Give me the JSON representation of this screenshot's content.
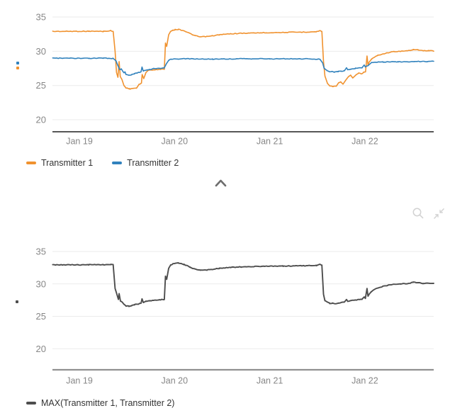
{
  "ui": {
    "colors": {
      "grid": "#ebebeb",
      "axis_top": "#3f3f3f",
      "axis_bottom": "#919191",
      "tick_label": "#878787",
      "legend_text": "#333333",
      "icon_gray": "#d2d2d2",
      "chevron_gray": "#6e6e6e"
    },
    "collapse_chevron": {
      "icon": "chevron-up-icon"
    },
    "toolbar_icons": [
      {
        "name": "zoom-magnifier"
      },
      {
        "name": "collapse-arrows"
      }
    ]
  },
  "chart_data": [
    {
      "type": "line",
      "title": "",
      "xlabel": "",
      "ylabel": "",
      "grid": "horizontal",
      "legend_position": "bottom-left",
      "y_ticks": [
        35,
        30,
        25,
        20
      ],
      "ylim": [
        18.3,
        35.8
      ],
      "x_ticks": [
        {
          "t": 0,
          "label": "Jan 19"
        },
        {
          "t": 1,
          "label": "Jan 20"
        },
        {
          "t": 2,
          "label": "Jan 21"
        },
        {
          "t": 3,
          "label": "Jan 22"
        }
      ],
      "x_range_days": [
        -0.283,
        3.723
      ],
      "series": [
        {
          "name": "Transmitter 1",
          "color": "#f0922f",
          "points": [
            [
              -0.28,
              32.9
            ],
            [
              0.1,
              32.92
            ],
            [
              0.25,
              32.9
            ],
            [
              0.33,
              33.0
            ],
            [
              0.355,
              32.9
            ],
            [
              0.375,
              30.0
            ],
            [
              0.39,
              26.9
            ],
            [
              0.405,
              26.2
            ],
            [
              0.418,
              28.5
            ],
            [
              0.43,
              26.3
            ],
            [
              0.447,
              25.9
            ],
            [
              0.468,
              25.0
            ],
            [
              0.49,
              24.65
            ],
            [
              0.53,
              24.5
            ],
            [
              0.57,
              24.6
            ],
            [
              0.6,
              24.6
            ],
            [
              0.628,
              25.2
            ],
            [
              0.652,
              25.35
            ],
            [
              0.66,
              26.6
            ],
            [
              0.676,
              26.0
            ],
            [
              0.7,
              26.9
            ],
            [
              0.722,
              27.2
            ],
            [
              0.78,
              27.3
            ],
            [
              0.85,
              27.35
            ],
            [
              0.893,
              27.4
            ],
            [
              0.905,
              31.2
            ],
            [
              0.917,
              30.7
            ],
            [
              0.938,
              32.4
            ],
            [
              0.958,
              32.9
            ],
            [
              0.983,
              33.1
            ],
            [
              1.005,
              33.15
            ],
            [
              1.04,
              33.2
            ],
            [
              1.1,
              33.0
            ],
            [
              1.16,
              32.6
            ],
            [
              1.22,
              32.25
            ],
            [
              1.27,
              32.1
            ],
            [
              1.34,
              32.15
            ],
            [
              1.4,
              32.25
            ],
            [
              1.47,
              32.4
            ],
            [
              1.59,
              32.55
            ],
            [
              1.7,
              32.62
            ],
            [
              1.92,
              32.7
            ],
            [
              2.14,
              32.75
            ],
            [
              2.37,
              32.8
            ],
            [
              2.49,
              32.85
            ],
            [
              2.527,
              33.0
            ],
            [
              2.548,
              32.9
            ],
            [
              2.565,
              28.5
            ],
            [
              2.58,
              26.4
            ],
            [
              2.607,
              25.3
            ],
            [
              2.63,
              24.95
            ],
            [
              2.665,
              24.85
            ],
            [
              2.7,
              24.9
            ],
            [
              2.724,
              25.4
            ],
            [
              2.747,
              25.5
            ],
            [
              2.77,
              25.2
            ],
            [
              2.8,
              25.8
            ],
            [
              2.828,
              26.3
            ],
            [
              2.85,
              26.5
            ],
            [
              2.873,
              26.1
            ],
            [
              2.903,
              26.5
            ],
            [
              2.932,
              26.8
            ],
            [
              2.962,
              26.7
            ],
            [
              2.985,
              26.9
            ],
            [
              3.007,
              27.0
            ],
            [
              3.022,
              29.3
            ],
            [
              3.033,
              28.0
            ],
            [
              3.045,
              28.4
            ],
            [
              3.067,
              28.8
            ],
            [
              3.097,
              29.1
            ],
            [
              3.134,
              29.4
            ],
            [
              3.187,
              29.6
            ],
            [
              3.246,
              29.8
            ],
            [
              3.306,
              29.95
            ],
            [
              3.373,
              30.0
            ],
            [
              3.447,
              30.05
            ],
            [
              3.507,
              30.25
            ],
            [
              3.559,
              30.2
            ],
            [
              3.611,
              30.05
            ],
            [
              3.671,
              30.1
            ],
            [
              3.723,
              30.05
            ]
          ]
        },
        {
          "name": "Transmitter 2",
          "color": "#3182bd",
          "points": [
            [
              -0.28,
              29.0
            ],
            [
              0.1,
              28.95
            ],
            [
              0.25,
              29.0
            ],
            [
              0.355,
              28.95
            ],
            [
              0.385,
              28.6
            ],
            [
              0.405,
              27.9
            ],
            [
              0.425,
              27.3
            ],
            [
              0.44,
              27.45
            ],
            [
              0.455,
              27.1
            ],
            [
              0.468,
              26.85
            ],
            [
              0.48,
              26.95
            ],
            [
              0.49,
              26.6
            ],
            [
              0.52,
              26.5
            ],
            [
              0.55,
              26.6
            ],
            [
              0.58,
              26.75
            ],
            [
              0.62,
              26.9
            ],
            [
              0.648,
              27.0
            ],
            [
              0.658,
              27.7
            ],
            [
              0.672,
              27.1
            ],
            [
              0.7,
              27.25
            ],
            [
              0.74,
              27.35
            ],
            [
              0.78,
              27.45
            ],
            [
              0.84,
              27.5
            ],
            [
              0.893,
              27.6
            ],
            [
              0.915,
              28.2
            ],
            [
              0.94,
              28.7
            ],
            [
              0.968,
              28.85
            ],
            [
              1.1,
              28.9
            ],
            [
              1.4,
              28.85
            ],
            [
              1.7,
              28.9
            ],
            [
              2.0,
              28.9
            ],
            [
              2.3,
              28.9
            ],
            [
              2.527,
              28.85
            ],
            [
              2.556,
              28.3
            ],
            [
              2.572,
              27.5
            ],
            [
              2.6,
              27.2
            ],
            [
              2.63,
              27.0
            ],
            [
              2.658,
              27.05
            ],
            [
              2.68,
              26.95
            ],
            [
              2.72,
              27.05
            ],
            [
              2.755,
              27.1
            ],
            [
              2.785,
              27.15
            ],
            [
              2.807,
              27.6
            ],
            [
              2.82,
              27.3
            ],
            [
              2.85,
              27.4
            ],
            [
              2.9,
              27.5
            ],
            [
              2.94,
              27.55
            ],
            [
              2.97,
              27.6
            ],
            [
              2.993,
              28.0
            ],
            [
              3.005,
              27.7
            ],
            [
              3.02,
              27.8
            ],
            [
              3.05,
              28.1
            ],
            [
              3.07,
              28.35
            ],
            [
              3.11,
              28.4
            ],
            [
              3.19,
              28.45
            ],
            [
              3.35,
              28.45
            ],
            [
              3.52,
              28.5
            ],
            [
              3.65,
              28.5
            ],
            [
              3.723,
              28.55
            ]
          ]
        }
      ]
    },
    {
      "type": "line",
      "title": "",
      "xlabel": "",
      "ylabel": "",
      "grid": "horizontal",
      "legend_position": "bottom-left",
      "y_ticks": [
        35,
        30,
        25,
        20
      ],
      "ylim": [
        16.7,
        35.1
      ],
      "x_ticks": [
        {
          "t": 0,
          "label": "Jan 19"
        },
        {
          "t": 1,
          "label": "Jan 20"
        },
        {
          "t": 2,
          "label": "Jan 21"
        },
        {
          "t": 3,
          "label": "Jan 22"
        }
      ],
      "x_range_days": [
        -0.283,
        3.723
      ],
      "series": [
        {
          "name": "MAX(Transmitter 1, Transmitter 2)",
          "color": "#4d4d4d",
          "points": [
            [
              -0.28,
              32.95
            ],
            [
              0.1,
              32.95
            ],
            [
              0.25,
              32.95
            ],
            [
              0.33,
              33.0
            ],
            [
              0.355,
              32.95
            ],
            [
              0.375,
              29.3
            ],
            [
              0.39,
              28.6
            ],
            [
              0.41,
              27.6
            ],
            [
              0.418,
              28.5
            ],
            [
              0.432,
              27.35
            ],
            [
              0.455,
              27.1
            ],
            [
              0.468,
              26.85
            ],
            [
              0.49,
              26.6
            ],
            [
              0.52,
              26.55
            ],
            [
              0.55,
              26.65
            ],
            [
              0.58,
              26.8
            ],
            [
              0.62,
              26.9
            ],
            [
              0.648,
              27.0
            ],
            [
              0.658,
              27.7
            ],
            [
              0.672,
              27.15
            ],
            [
              0.7,
              27.3
            ],
            [
              0.74,
              27.4
            ],
            [
              0.78,
              27.45
            ],
            [
              0.84,
              27.55
            ],
            [
              0.893,
              27.6
            ],
            [
              0.905,
              31.2
            ],
            [
              0.917,
              30.7
            ],
            [
              0.938,
              32.4
            ],
            [
              0.958,
              32.9
            ],
            [
              0.983,
              33.1
            ],
            [
              1.005,
              33.15
            ],
            [
              1.04,
              33.2
            ],
            [
              1.1,
              33.0
            ],
            [
              1.16,
              32.6
            ],
            [
              1.22,
              32.25
            ],
            [
              1.27,
              32.1
            ],
            [
              1.34,
              32.15
            ],
            [
              1.4,
              32.25
            ],
            [
              1.47,
              32.4
            ],
            [
              1.59,
              32.55
            ],
            [
              1.7,
              32.62
            ],
            [
              1.92,
              32.7
            ],
            [
              2.14,
              32.75
            ],
            [
              2.37,
              32.8
            ],
            [
              2.49,
              32.85
            ],
            [
              2.527,
              33.0
            ],
            [
              2.548,
              32.9
            ],
            [
              2.565,
              28.4
            ],
            [
              2.58,
              27.4
            ],
            [
              2.6,
              27.2
            ],
            [
              2.63,
              27.0
            ],
            [
              2.658,
              27.05
            ],
            [
              2.68,
              26.95
            ],
            [
              2.72,
              27.05
            ],
            [
              2.755,
              27.15
            ],
            [
              2.785,
              27.2
            ],
            [
              2.807,
              27.6
            ],
            [
              2.82,
              27.3
            ],
            [
              2.85,
              27.4
            ],
            [
              2.9,
              27.5
            ],
            [
              2.94,
              27.6
            ],
            [
              2.97,
              27.65
            ],
            [
              2.993,
              28.0
            ],
            [
              3.005,
              27.75
            ],
            [
              3.022,
              29.3
            ],
            [
              3.033,
              28.1
            ],
            [
              3.045,
              28.4
            ],
            [
              3.067,
              28.8
            ],
            [
              3.097,
              29.1
            ],
            [
              3.134,
              29.4
            ],
            [
              3.187,
              29.6
            ],
            [
              3.246,
              29.8
            ],
            [
              3.306,
              29.95
            ],
            [
              3.373,
              30.0
            ],
            [
              3.447,
              30.05
            ],
            [
              3.507,
              30.25
            ],
            [
              3.559,
              30.2
            ],
            [
              3.611,
              30.05
            ],
            [
              3.671,
              30.1
            ],
            [
              3.723,
              30.05
            ]
          ]
        }
      ]
    }
  ]
}
